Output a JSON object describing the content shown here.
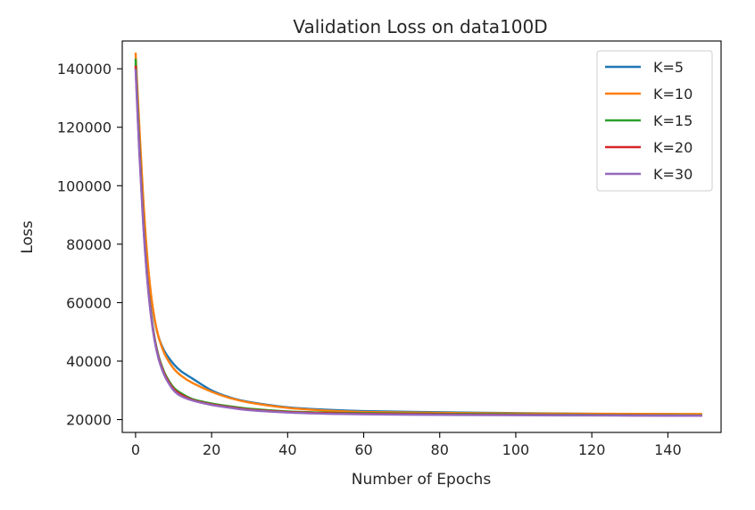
{
  "chart_data": {
    "type": "line",
    "title": "Validation Loss on data100D",
    "xlabel": "Number of Epochs",
    "ylabel": "Loss",
    "xlim": [
      -3.5,
      154
    ],
    "ylim": [
      15600,
      149500
    ],
    "xticks": [
      0,
      20,
      40,
      60,
      80,
      100,
      120,
      140
    ],
    "xtick_labels": [
      "0",
      "20",
      "40",
      "60",
      "80",
      "100",
      "120",
      "140"
    ],
    "yticks": [
      20000,
      40000,
      60000,
      80000,
      100000,
      120000,
      140000
    ],
    "ytick_labels": [
      "20000",
      "40000",
      "60000",
      "80000",
      "100000",
      "120000",
      "140000"
    ],
    "grid": false,
    "legend_position": "top-right",
    "x": [
      0,
      1,
      2,
      3,
      4,
      5,
      6,
      7,
      8,
      10,
      12,
      15,
      20,
      25,
      30,
      40,
      50,
      60,
      80,
      100,
      120,
      149
    ],
    "series": [
      {
        "name": "K=5",
        "color": "#1f77b4",
        "values": [
          142000,
          118000,
          95000,
          76000,
          63000,
          54000,
          48500,
          45000,
          42500,
          39000,
          36500,
          34000,
          30000,
          27500,
          26000,
          24200,
          23400,
          22900,
          22500,
          22200,
          22000,
          21800
        ]
      },
      {
        "name": "K=10",
        "color": "#ff7f0e",
        "values": [
          145500,
          120000,
          96000,
          77000,
          63500,
          54500,
          48500,
          44500,
          41500,
          37500,
          35000,
          32500,
          29500,
          27300,
          25800,
          24000,
          23100,
          22600,
          22300,
          22100,
          22000,
          21900
        ]
      },
      {
        "name": "K=15",
        "color": "#2ca02c",
        "values": [
          143500,
          114000,
          89000,
          70000,
          57000,
          48000,
          42000,
          38000,
          35000,
          31000,
          29000,
          27000,
          25500,
          24500,
          23700,
          22800,
          22400,
          22200,
          22000,
          21800,
          21600,
          21400
        ]
      },
      {
        "name": "K=20",
        "color": "#d62728",
        "values": [
          141000,
          112000,
          88000,
          69500,
          56500,
          47500,
          41500,
          37500,
          34500,
          30500,
          28500,
          26700,
          25200,
          24200,
          23400,
          22600,
          22200,
          22000,
          21800,
          21600,
          21500,
          21300
        ]
      },
      {
        "name": "K=30",
        "color": "#9467bd",
        "values": [
          140000,
          111000,
          87000,
          69000,
          56000,
          47000,
          41000,
          37000,
          34000,
          30000,
          28000,
          26500,
          25000,
          24000,
          23200,
          22400,
          22000,
          21800,
          21600,
          21500,
          21400,
          21300
        ]
      }
    ]
  }
}
